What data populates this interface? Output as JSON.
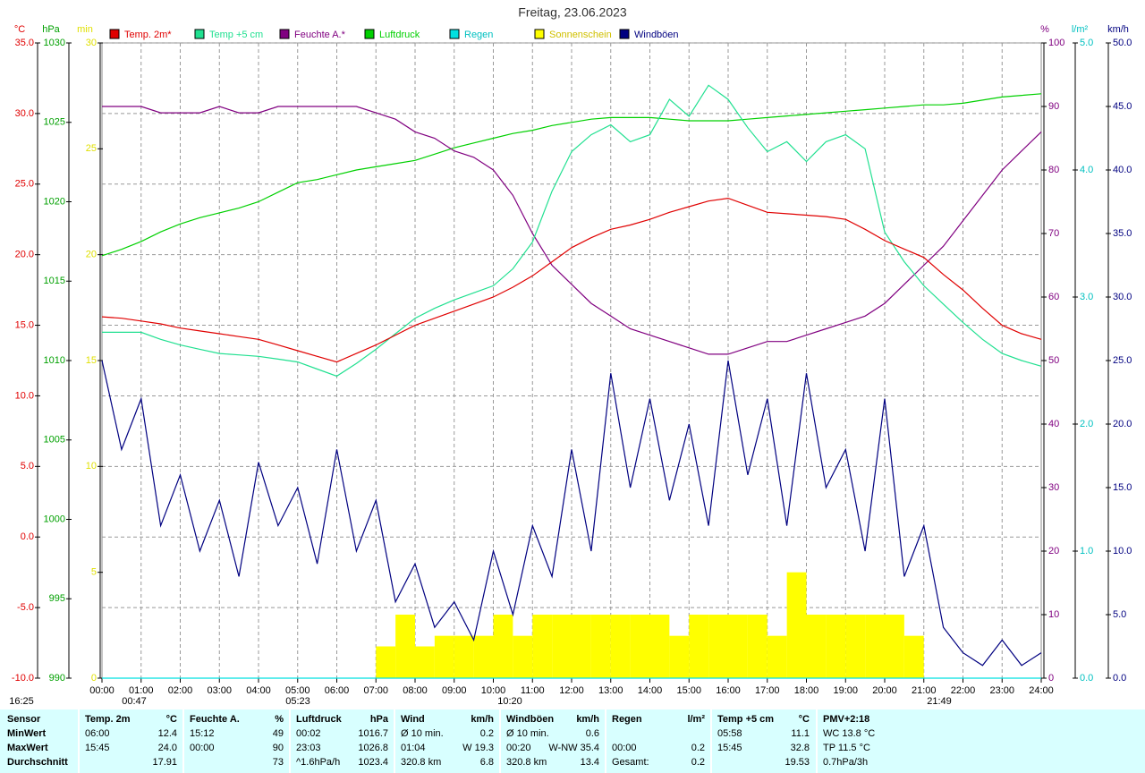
{
  "chart_data": {
    "type": "line",
    "title": "Freitag, 23.06.2023",
    "x": [
      "00:00",
      null,
      "01:00",
      null,
      "02:00",
      null,
      "03:00",
      null,
      "04:00",
      null,
      "05:00",
      null,
      "06:00",
      null,
      "07:00",
      null,
      "08:00",
      null,
      "09:00",
      null,
      "10:00",
      null,
      "11:00",
      null,
      "12:00",
      null,
      "13:00",
      null,
      "14:00",
      null,
      "15:00",
      null,
      "16:00",
      null,
      "17:00",
      null,
      "18:00",
      null,
      "19:00",
      null,
      "20:00",
      null,
      "21:00",
      null,
      "22:00",
      null,
      "23:00",
      null,
      "24:00"
    ],
    "grid": true,
    "series": [
      {
        "name": "Temp. 2m*",
        "color": "#e00000",
        "unit": "°C",
        "ylim": [
          -10,
          35
        ],
        "yticks": [
          {
            "value": 35,
            "label": "35.0"
          },
          {
            "value": 30,
            "label": "30.0"
          },
          {
            "value": 25,
            "label": "25.0"
          },
          {
            "value": 20,
            "label": "20.0"
          },
          {
            "value": 15,
            "label": "15.0"
          },
          {
            "value": 10,
            "label": "10.0"
          },
          {
            "value": 5,
            "label": "5.0"
          },
          {
            "value": 0,
            "label": "0.0"
          },
          {
            "value": -5,
            "label": "-5.0"
          },
          {
            "value": -10,
            "label": "-10.0"
          }
        ],
        "values": [
          15.6,
          15.5,
          15.3,
          15.1,
          14.8,
          14.6,
          14.4,
          14.2,
          14.0,
          13.6,
          13.2,
          12.8,
          12.4,
          13.0,
          13.6,
          14.3,
          15.0,
          15.5,
          16.0,
          16.5,
          17.0,
          17.7,
          18.5,
          19.5,
          20.5,
          21.2,
          21.8,
          22.1,
          22.5,
          23.0,
          23.4,
          23.8,
          24.0,
          23.5,
          23.0,
          22.9,
          22.8,
          22.7,
          22.5,
          21.8,
          21.0,
          20.4,
          19.8,
          18.6,
          17.5,
          16.2,
          15.0,
          14.4,
          14.0
        ]
      },
      {
        "name": "Temp +5 cm",
        "color": "#20e090",
        "axis": "Temp. 2m*",
        "values": [
          14.5,
          14.5,
          14.5,
          14.0,
          13.6,
          13.3,
          13.0,
          12.9,
          12.8,
          12.6,
          12.4,
          11.9,
          11.4,
          12.3,
          13.3,
          14.4,
          15.5,
          16.2,
          16.8,
          17.3,
          17.8,
          19.0,
          20.9,
          24.5,
          27.3,
          28.5,
          29.2,
          28.0,
          28.5,
          31.0,
          29.8,
          32.0,
          31.0,
          29.0,
          27.3,
          28.0,
          26.6,
          28.0,
          28.5,
          27.5,
          21.6,
          19.5,
          17.8,
          16.5,
          15.2,
          14.0,
          13.0,
          12.5,
          12.1
        ]
      },
      {
        "name": "Feuchte A.*",
        "color": "#800080",
        "unit": "%",
        "ylim": [
          0,
          100
        ],
        "yticks": [
          100,
          90,
          80,
          70,
          60,
          50,
          40,
          30,
          20,
          10,
          0
        ],
        "values": [
          90,
          90,
          90,
          89,
          89,
          89,
          90,
          89,
          89,
          90,
          90,
          90,
          90,
          90,
          89,
          88,
          86,
          85,
          83,
          82,
          80,
          76,
          70,
          65,
          62,
          59,
          57,
          55,
          54,
          53,
          52,
          51,
          51,
          52,
          53,
          53,
          54,
          55,
          56,
          57,
          59,
          62,
          65,
          68,
          72,
          76,
          80,
          83,
          86
        ]
      },
      {
        "name": "Luftdruck",
        "color": "#00d000",
        "unit": "hPa",
        "ylim": [
          990,
          1030
        ],
        "yticks": [
          1030,
          1025,
          1020,
          1015,
          1010,
          1005,
          1000,
          995,
          990
        ],
        "values": [
          1016.6,
          1017.0,
          1017.5,
          1018.1,
          1018.6,
          1019.0,
          1019.3,
          1019.6,
          1020.0,
          1020.6,
          1021.2,
          1021.4,
          1021.7,
          1022.0,
          1022.2,
          1022.4,
          1022.6,
          1023.0,
          1023.4,
          1023.7,
          1024.0,
          1024.3,
          1024.5,
          1024.8,
          1025.0,
          1025.2,
          1025.3,
          1025.3,
          1025.3,
          1025.2,
          1025.1,
          1025.1,
          1025.1,
          1025.2,
          1025.3,
          1025.4,
          1025.5,
          1025.6,
          1025.7,
          1025.8,
          1025.9,
          1026.0,
          1026.1,
          1026.1,
          1026.2,
          1026.4,
          1026.6,
          1026.7,
          1026.8
        ]
      },
      {
        "name": "Regen",
        "color": "#00e0e0",
        "unit": "l/m²",
        "ylim": [
          0,
          5
        ],
        "yticks": [
          {
            "value": 5,
            "label": "5.0"
          },
          {
            "value": 4,
            "label": "4.0"
          },
          {
            "value": 3,
            "label": "3.0"
          },
          {
            "value": 2,
            "label": "2.0"
          },
          {
            "value": 1,
            "label": "1.0"
          },
          {
            "value": 0,
            "label": "0.0"
          }
        ],
        "values": [
          0,
          0,
          0,
          0,
          0,
          0,
          0,
          0,
          0,
          0,
          0,
          0,
          0,
          0,
          0,
          0,
          0,
          0,
          0,
          0,
          0,
          0,
          0,
          0,
          0,
          0,
          0,
          0,
          0,
          0,
          0,
          0,
          0,
          0,
          0,
          0,
          0,
          0,
          0,
          0,
          0,
          0,
          0,
          0,
          0,
          0,
          0,
          0,
          0
        ]
      },
      {
        "name": "Sonnenschein",
        "color": "#ffff00",
        "unit": "min",
        "ylim": [
          0,
          30
        ],
        "yticks": [
          30,
          25,
          20,
          15,
          10,
          5,
          0
        ],
        "values": [
          0,
          0,
          0,
          0,
          0,
          0,
          0,
          0,
          0,
          0,
          0,
          0,
          0,
          0,
          1.5,
          3,
          1.5,
          2,
          2,
          2,
          3,
          2,
          3,
          3,
          3,
          3,
          3,
          3,
          3,
          2,
          3,
          3,
          3,
          3,
          2,
          5,
          3,
          3,
          3,
          3,
          3,
          2,
          0,
          0,
          0,
          0,
          0,
          0,
          0
        ]
      },
      {
        "name": "Windböen",
        "color": "#000080",
        "unit": "km/h",
        "ylim": [
          0,
          50
        ],
        "yticks": [
          {
            "value": 50,
            "label": "50.0"
          },
          {
            "value": 45,
            "label": "45.0"
          },
          {
            "value": 40,
            "label": "40.0"
          },
          {
            "value": 35,
            "label": "35.0"
          },
          {
            "value": 30,
            "label": "30.0"
          },
          {
            "value": 25,
            "label": "25.0"
          },
          {
            "value": 20,
            "label": "20.0"
          },
          {
            "value": 15,
            "label": "15.0"
          },
          {
            "value": 10,
            "label": "10.0"
          },
          {
            "value": 5,
            "label": "5.0"
          },
          {
            "value": 0,
            "label": "0.0"
          }
        ],
        "values": [
          25,
          18,
          22,
          12,
          16,
          10,
          14,
          8,
          17,
          12,
          15,
          9,
          18,
          10,
          14,
          6,
          9,
          4,
          6,
          3,
          10,
          5,
          12,
          8,
          18,
          10,
          24,
          15,
          22,
          14,
          20,
          12,
          25,
          16,
          22,
          12,
          24,
          15,
          18,
          10,
          22,
          8,
          12,
          4,
          2,
          1,
          3,
          1,
          2
        ]
      }
    ],
    "annotations": [
      "00:47",
      "05:23",
      "10:20",
      "16:25",
      "21:49"
    ]
  },
  "stats": {
    "rows": [
      [
        "Sensor",
        "Temp. 2m",
        "°C",
        "Feuchte A.",
        "%",
        "Luftdruck",
        "hPa",
        "Wind",
        "km/h",
        "Windböen",
        "km/h",
        "Regen",
        "l/m²",
        "Temp +5 cm",
        "°C",
        "PMV+2:18",
        null
      ],
      [
        "MinWert",
        "06:00",
        "12.4",
        "15:12",
        "49",
        "00:02",
        "1016.7",
        "Ø 10 min.",
        "0.2",
        "Ø 10 min.",
        "0.6",
        null,
        null,
        "05:58",
        "11.1",
        "WC 13.8 °C",
        null
      ],
      [
        "MaxWert",
        "15:45",
        "24.0",
        "00:00",
        "90",
        "23:03",
        "1026.8",
        "01:04",
        "W 19.3",
        "00:20",
        "W-NW 35.4",
        "00:00",
        "0.2",
        "15:45",
        "32.8",
        "TP 11.5 °C",
        null
      ],
      [
        "Durchschnitt",
        null,
        "17.91",
        null,
        "73",
        "^1.6hPa/h",
        "1023.4",
        "320.8 km",
        "6.8",
        "320.8 km",
        "13.4",
        "Gesamt:",
        "0.2",
        null,
        "19.53",
        "0.7hPa/3h",
        null
      ]
    ]
  }
}
